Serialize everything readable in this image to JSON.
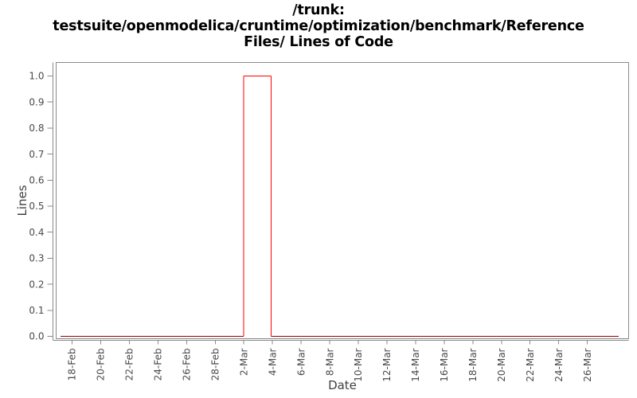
{
  "chart_data": {
    "type": "line",
    "title_lines": [
      "/trunk:",
      "testsuite/openmodelica/cruntime/optimization/benchmark/Reference",
      "Files/ Lines of Code"
    ],
    "xlabel": "Date",
    "ylabel": "Lines",
    "x_tick_labels": [
      "18-Feb",
      "20-Feb",
      "22-Feb",
      "24-Feb",
      "26-Feb",
      "28-Feb",
      "2-Mar",
      "4-Mar",
      "6-Mar",
      "8-Mar",
      "10-Mar",
      "12-Mar",
      "14-Mar",
      "16-Mar",
      "18-Mar",
      "20-Mar",
      "22-Mar",
      "24-Mar",
      "26-Mar"
    ],
    "x_tick_days": [
      0,
      2,
      4,
      6,
      8,
      10,
      12,
      14,
      16,
      18,
      20,
      22,
      24,
      26,
      28,
      30,
      32,
      34,
      36
    ],
    "y_tick_labels": [
      "0.0",
      "0.1",
      "0.2",
      "0.3",
      "0.4",
      "0.5",
      "0.6",
      "0.7",
      "0.8",
      "0.9",
      "1.0"
    ],
    "y_tick_values": [
      0,
      0.1,
      0.2,
      0.3,
      0.4,
      0.5,
      0.6,
      0.7,
      0.8,
      0.9,
      1.0
    ],
    "ylim": [
      0,
      1
    ],
    "grid": false,
    "legend": "none",
    "series": [
      {
        "name": "lines-of-code",
        "color": "#fe0000",
        "zero_segment_color": "#990000",
        "note": "value is 0 across the whole range except a step to 1 between 2-Mar and 4-Mar",
        "points": [
          {
            "day": -0.8,
            "value": 0
          },
          {
            "day": 12,
            "value": 0,
            "date": "2-Mar"
          },
          {
            "day": 12,
            "value": 1,
            "date": "2-Mar"
          },
          {
            "day": 13.9,
            "value": 1,
            "date": "4-Mar"
          },
          {
            "day": 13.9,
            "value": 0,
            "date": "4-Mar"
          },
          {
            "day": 38.2,
            "value": 0
          }
        ]
      }
    ],
    "colors": {
      "axis": "#8a8a8a",
      "tick_label": "#4a4a4a",
      "axis_title": "#3f3f3f",
      "title": "#000000",
      "background": "#ffffff"
    }
  }
}
